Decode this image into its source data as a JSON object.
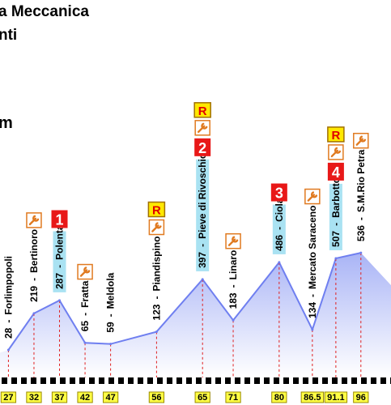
{
  "chart_data": {
    "type": "profile",
    "title": "a Meccanica",
    "subtitle": "nti",
    "side_label": "m",
    "separator": "-",
    "refuel_label": "R",
    "line_color": "#6f7ff0",
    "points": [
      {
        "km": 27,
        "elev": 28,
        "place": "Forlimpopoli"
      },
      {
        "km": 32,
        "elev": 219,
        "place": "Bertinoro",
        "tools": true
      },
      {
        "km": 37,
        "elev": 287,
        "place": "Polenta",
        "climb": "1"
      },
      {
        "km": 42,
        "elev": 65,
        "place": "Fratta",
        "tools": true
      },
      {
        "km": 47,
        "elev": 59,
        "place": "Meldola"
      },
      {
        "km": 56,
        "elev": 123,
        "place": "Piandispino",
        "tools": true,
        "refuel": true
      },
      {
        "km": 65,
        "elev": 397,
        "place": "Pieve di Rivoschio",
        "climb": "2",
        "tools": true,
        "refuel": true
      },
      {
        "km": 71,
        "elev": 183,
        "place": "Linaro",
        "tools": true
      },
      {
        "km": 80,
        "elev": 486,
        "place": "Ciola",
        "climb": "3"
      },
      {
        "km": 86.5,
        "elev": 134,
        "place": "Mercato Saraceno",
        "tools": true
      },
      {
        "km": 91.1,
        "elev": 507,
        "place": "Barbotto",
        "climb": "4",
        "tools": true,
        "refuel": true
      },
      {
        "km": 96,
        "elev": 536,
        "place": "S.M.Rio Petra",
        "tools": true
      }
    ]
  }
}
